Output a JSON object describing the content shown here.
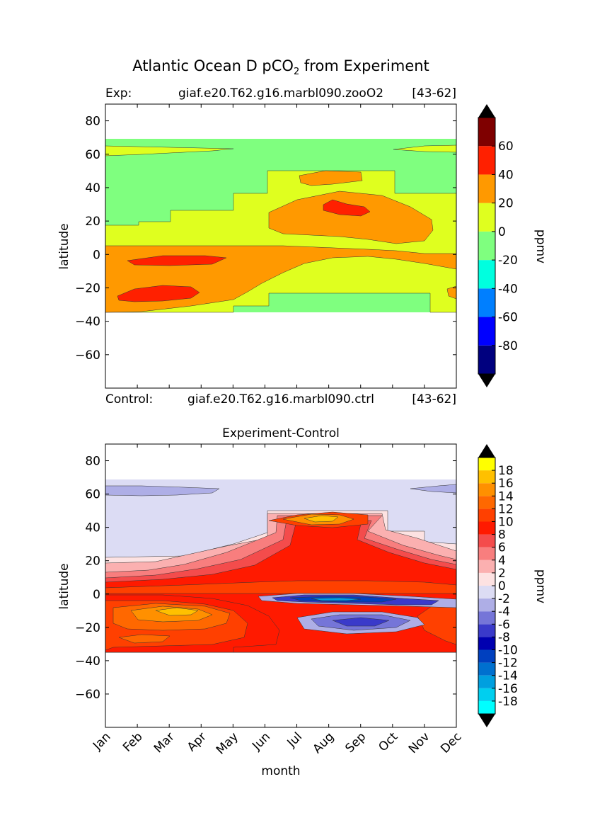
{
  "figure": {
    "title_main": "Atlantic Ocean D pCO",
    "title_sub": "2",
    "title_tail": " from Experiment"
  },
  "top_panel": {
    "exp_label": "Exp:",
    "exp_case": "giaf.e20.T62.g16.marbl090.zooO2",
    "exp_years": "[43-62]",
    "ctrl_label": "Control:",
    "ctrl_case": "giaf.e20.T62.g16.marbl090.ctrl",
    "ctrl_years": "[43-62]"
  },
  "bottom_panel": {
    "title": "Experiment-Control",
    "xlabel": "month"
  },
  "colors": {
    "top_levels": [
      "#00007f",
      "#0000ff",
      "#007fff",
      "#00ffdf",
      "#7fff7f",
      "#dfff1f",
      "#ff9900",
      "#ff2000",
      "#7f0000"
    ],
    "diff_levels": [
      "#00ffff",
      "#00cfef",
      "#009fdf",
      "#0070cf",
      "#0040bf",
      "#0000b0",
      "#3a3aca",
      "#7575d8",
      "#aeaee6",
      "#dcdcf4",
      "#fde2e2",
      "#fbb0b0",
      "#f87e7e",
      "#f44c4c",
      "#ff1a00",
      "#ff4000",
      "#ff6800",
      "#ff9000",
      "#ffc000",
      "#ffff00"
    ]
  },
  "chart_data": [
    {
      "type": "heatmap",
      "title": "",
      "xlabel": "",
      "ylabel": "latitude",
      "x": [
        "Jan",
        "Feb",
        "Mar",
        "Apr",
        "May",
        "Jun",
        "Jul",
        "Aug",
        "Sep",
        "Oct",
        "Nov",
        "Dec"
      ],
      "xlim": [
        0,
        11
      ],
      "ylim": [
        -80,
        90
      ],
      "yticks": [
        80,
        60,
        40,
        20,
        0,
        -20,
        -40,
        -60
      ],
      "ytick_labels": [
        "80",
        "60",
        "40",
        "20",
        "0",
        "−20",
        "−40",
        "−60"
      ],
      "data_lat_range": [
        -34,
        69
      ],
      "colorbar": {
        "label": "ppmv",
        "levels": [
          -100,
          -80,
          -60,
          -40,
          -20,
          0,
          20,
          40,
          60,
          80
        ],
        "tick_values": [
          60,
          40,
          20,
          0,
          -20,
          -40,
          -60,
          -80
        ],
        "tick_labels": [
          "60",
          "40",
          "20",
          "0",
          "-20",
          "-40",
          "-60",
          "-80"
        ],
        "extend": "both"
      },
      "regions": [
        {
          "level": 0,
          "description": "background",
          "value_range": [
            -20,
            0
          ],
          "lat_range": [
            -34,
            69
          ]
        },
        {
          "level": 1,
          "value_range": [
            0,
            20
          ],
          "months": [
            0,
            11
          ],
          "lat_range": [
            -34,
            60
          ]
        },
        {
          "level": 2,
          "value_range": [
            20,
            40
          ],
          "months": [
            0,
            11
          ],
          "lat_range": [
            -34,
            45
          ]
        },
        {
          "level": 3,
          "value_range": [
            40,
            60
          ],
          "months": [
            0,
            11
          ],
          "lat_range": [
            -27,
            28
          ]
        }
      ]
    },
    {
      "type": "heatmap",
      "title": "Experiment-Control",
      "xlabel": "month",
      "ylabel": "latitude",
      "x": [
        "Jan",
        "Feb",
        "Mar",
        "Apr",
        "May",
        "Jun",
        "Jul",
        "Aug",
        "Sep",
        "Oct",
        "Nov",
        "Dec"
      ],
      "xlim": [
        0,
        11
      ],
      "ylim": [
        -80,
        90
      ],
      "yticks": [
        80,
        60,
        40,
        20,
        0,
        -20,
        -40,
        -60
      ],
      "ytick_labels": [
        "80",
        "60",
        "40",
        "20",
        "0",
        "−20",
        "−40",
        "−60"
      ],
      "data_lat_range": [
        -34,
        69
      ],
      "colorbar": {
        "label": "ppmv",
        "levels": [
          -20,
          -18,
          -16,
          -14,
          -12,
          -10,
          -8,
          -6,
          -4,
          -2,
          0,
          2,
          4,
          6,
          8,
          10,
          12,
          14,
          16,
          18,
          20
        ],
        "tick_values": [
          18,
          16,
          14,
          12,
          10,
          8,
          6,
          4,
          2,
          0,
          -2,
          -4,
          -6,
          -8,
          -10,
          -12,
          -14,
          -16,
          -18
        ],
        "tick_labels": [
          "18",
          "16",
          "14",
          "12",
          "10",
          "8",
          "6",
          "4",
          "2",
          "0",
          "-2",
          "-4",
          "-6",
          "-8",
          "-10",
          "-12",
          "-14",
          "-16",
          "-18"
        ],
        "extend": "both"
      },
      "regions": [
        {
          "level": 9,
          "description": "background",
          "value_range": [
            -2,
            0
          ],
          "lat_range": [
            -34,
            69
          ]
        },
        {
          "level": 8,
          "value_range": [
            -4,
            -2
          ],
          "months": [
            0,
            11
          ],
          "lat_range": [
            60,
            65
          ]
        },
        {
          "level": 14,
          "value_range": [
            8,
            10
          ],
          "months": [
            0,
            11
          ],
          "lat_range": [
            -30,
            45
          ]
        },
        {
          "level": 17,
          "value_range": [
            14,
            16
          ],
          "months": [
            1,
            3
          ],
          "lat_range": [
            -15,
            -5
          ]
        },
        {
          "level": 3,
          "value_range": [
            -14,
            -12
          ],
          "months": [
            5,
            10
          ],
          "lat_range": [
            -6,
            -1
          ]
        },
        {
          "level": 6,
          "value_range": [
            -8,
            -6
          ],
          "months": [
            6,
            9
          ],
          "lat_range": [
            -22,
            -14
          ]
        }
      ]
    }
  ]
}
